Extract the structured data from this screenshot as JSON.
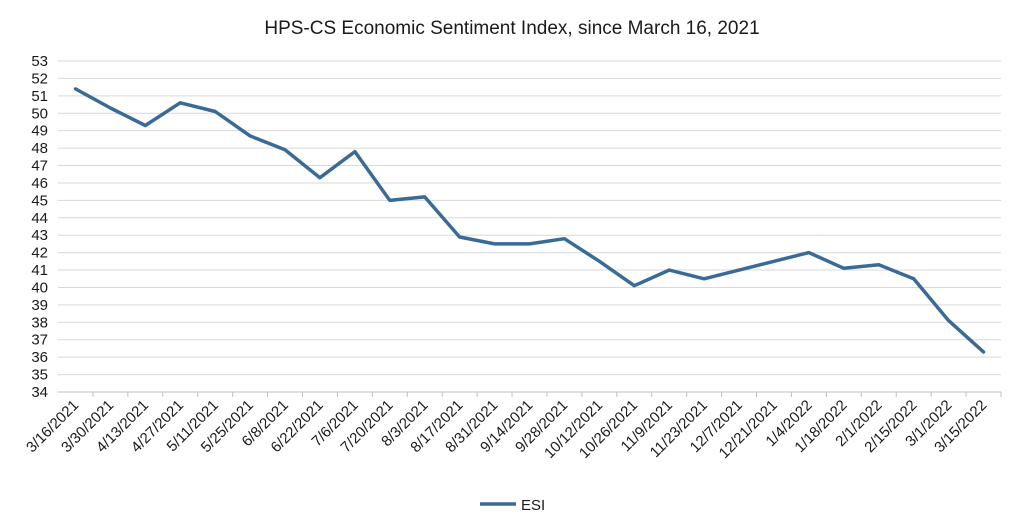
{
  "chart_data": {
    "type": "line",
    "title": "HPS-CS Economic Sentiment Index, since March 16, 2021",
    "xlabel": "",
    "ylabel": "",
    "ylim": [
      34,
      53
    ],
    "yticks": [
      34,
      35,
      36,
      37,
      38,
      39,
      40,
      41,
      42,
      43,
      44,
      45,
      46,
      47,
      48,
      49,
      50,
      51,
      52,
      53
    ],
    "grid": true,
    "legend": "bottom",
    "categories": [
      "3/16/2021",
      "3/30/2021",
      "4/13/2021",
      "4/27/2021",
      "5/11/2021",
      "5/25/2021",
      "6/8/2021",
      "6/22/2021",
      "7/6/2021",
      "7/20/2021",
      "8/3/2021",
      "8/17/2021",
      "8/31/2021",
      "9/14/2021",
      "9/28/2021",
      "10/12/2021",
      "10/26/2021",
      "11/9/2021",
      "11/23/2021",
      "12/7/2021",
      "12/21/2021",
      "1/4/2022",
      "1/18/2022",
      "2/1/2022",
      "2/15/2022",
      "3/1/2022",
      "3/15/2022"
    ],
    "series": [
      {
        "name": "ESI",
        "color": "#3a6a96",
        "values": [
          51.4,
          50.3,
          49.3,
          50.6,
          50.1,
          48.7,
          47.9,
          46.3,
          47.8,
          45.0,
          45.2,
          42.9,
          42.5,
          42.5,
          42.8,
          41.5,
          40.1,
          41.0,
          40.5,
          41.0,
          41.5,
          42.0,
          41.1,
          41.3,
          40.5,
          38.1,
          36.3
        ]
      }
    ]
  }
}
